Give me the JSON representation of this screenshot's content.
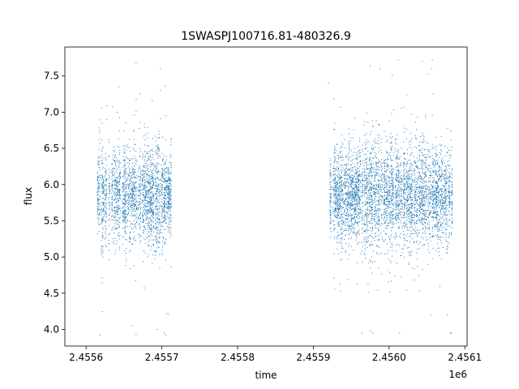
{
  "chart_data": {
    "type": "scatter",
    "title": "1SWASPJ100716.81-480326.9",
    "xlabel": "time",
    "ylabel": "flux",
    "x_offset_label": "1e6",
    "xlim": [
      2455572,
      2456103
    ],
    "ylim": [
      3.77,
      7.9
    ],
    "x_ticks": [
      2455600,
      2455700,
      2455800,
      2455900,
      2456000,
      2456100
    ],
    "x_tick_labels": [
      "2.4556",
      "2.4557",
      "2.4558",
      "2.4559",
      "2.4560",
      "2.4561"
    ],
    "y_ticks": [
      4.0,
      4.5,
      5.0,
      5.5,
      6.0,
      6.5,
      7.0,
      7.5
    ],
    "y_tick_labels": [
      "4.0",
      "4.5",
      "5.0",
      "5.5",
      "6.0",
      "6.5",
      "7.0",
      "7.5"
    ],
    "grid": false,
    "legend": "none",
    "marker_color": "#1f77b4",
    "series": [
      {
        "segments": [
          {
            "x_range": [
              2455615,
              2455712
            ],
            "median": 5.85,
            "core_spread": [
              5.3,
              6.4
            ],
            "min": 3.92,
            "max": 7.68,
            "cadence_days": 1
          },
          {
            "x_range": [
              2455922,
              2456083
            ],
            "median": 5.85,
            "core_spread": [
              5.3,
              6.45
            ],
            "min": 3.95,
            "max": 7.72,
            "cadence_days": 1
          }
        ],
        "peaks": [
          {
            "x": 2455666,
            "y": 7.68
          },
          {
            "x": 2455698,
            "y": 7.6
          },
          {
            "x": 2455698,
            "y": 7.3
          },
          {
            "x": 2455643,
            "y": 7.35
          },
          {
            "x": 2455671,
            "y": 7.25
          },
          {
            "x": 2456044,
            "y": 7.7
          },
          {
            "x": 2456052,
            "y": 7.53
          },
          {
            "x": 2456056,
            "y": 7.6
          },
          {
            "x": 2456058,
            "y": 7.25
          },
          {
            "x": 2455988,
            "y": 7.6
          },
          {
            "x": 2455920,
            "y": 7.4
          },
          {
            "x": 2455975,
            "y": 7.64
          }
        ],
        "troughs": [
          {
            "x": 2455661,
            "y": 4.05
          },
          {
            "x": 2455666,
            "y": 3.93
          },
          {
            "x": 2455694,
            "y": 4.0
          },
          {
            "x": 2455703,
            "y": 3.95
          },
          {
            "x": 2455706,
            "y": 4.22
          },
          {
            "x": 2455975,
            "y": 3.98
          },
          {
            "x": 2456014,
            "y": 3.95
          },
          {
            "x": 2456077,
            "y": 4.2
          },
          {
            "x": 2456081,
            "y": 3.95
          }
        ]
      }
    ]
  }
}
